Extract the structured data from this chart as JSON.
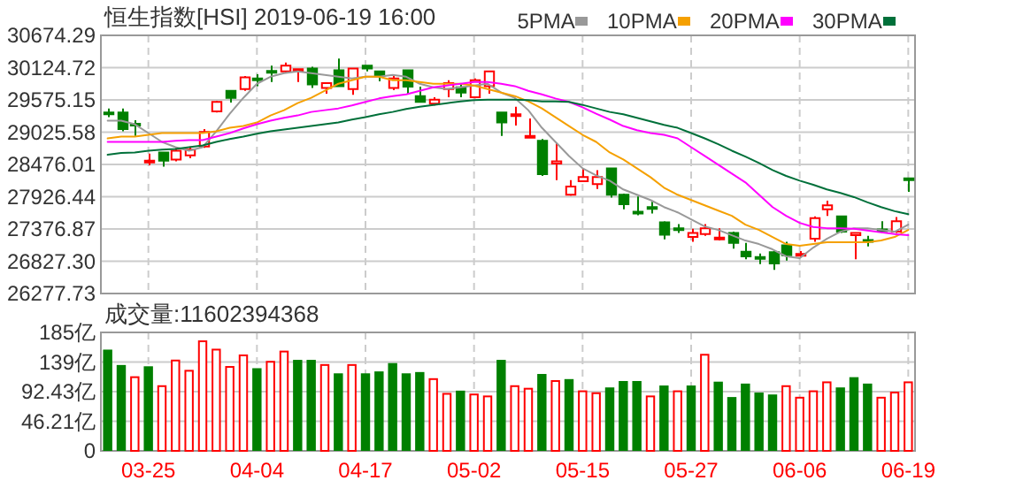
{
  "chart_data": [
    {
      "type": "candlestick",
      "title": "恒生指数[HSI] 2019-06-19 16:00",
      "categories": [
        null,
        null,
        null,
        null,
        null,
        null,
        null,
        null,
        null,
        null,
        null,
        null,
        null,
        null,
        null,
        null,
        null,
        null,
        null,
        null,
        null,
        null,
        null,
        null,
        null,
        null,
        null,
        null,
        null,
        null,
        null,
        null,
        null,
        null,
        null,
        null,
        null,
        null,
        null,
        null,
        null,
        null,
        null,
        null,
        null,
        null,
        null,
        null,
        null,
        null,
        null,
        null,
        null,
        null,
        null,
        null,
        null,
        null,
        null,
        null
      ],
      "ohlc": [
        [
          29360,
          29430,
          29280,
          29350
        ],
        [
          29360,
          29430,
          29040,
          29080
        ],
        [
          29170,
          29230,
          28960,
          29150
        ],
        [
          28520,
          28660,
          28460,
          28540
        ],
        [
          28680,
          28690,
          28440,
          28540
        ],
        [
          28560,
          28760,
          28530,
          28710
        ],
        [
          28630,
          28780,
          28580,
          28730
        ],
        [
          28780,
          29080,
          28760,
          29030
        ],
        [
          29380,
          29560,
          29360,
          29540
        ],
        [
          29730,
          29740,
          29530,
          29610
        ],
        [
          29760,
          29980,
          29730,
          29960
        ],
        [
          29940,
          30010,
          29810,
          29930
        ],
        [
          30070,
          30160,
          29880,
          30060
        ],
        [
          30060,
          30210,
          30040,
          30160
        ],
        [
          30080,
          30110,
          29880,
          30100
        ],
        [
          30110,
          30140,
          29780,
          29840
        ],
        [
          29780,
          29860,
          29680,
          29860
        ],
        [
          30080,
          30280,
          29810,
          29810
        ],
        [
          29760,
          30110,
          29660,
          30110
        ],
        [
          30160,
          30170,
          30060,
          30110
        ],
        [
          30060,
          30070,
          29890,
          29980
        ],
        [
          29780,
          30010,
          29740,
          29940
        ],
        [
          30080,
          30090,
          29680,
          29800
        ],
        [
          29640,
          29800,
          29540,
          29540
        ],
        [
          29510,
          29620,
          29480,
          29580
        ],
        [
          29760,
          29910,
          29620,
          29860
        ],
        [
          29790,
          29840,
          29620,
          29700
        ],
        [
          29620,
          29940,
          29600,
          29910
        ],
        [
          29810,
          30070,
          29680,
          30060
        ],
        [
          29360,
          29370,
          28960,
          29190
        ],
        [
          29320,
          29460,
          29140,
          29330
        ],
        [
          28950,
          29260,
          28940,
          28960
        ],
        [
          28880,
          28910,
          28280,
          28310
        ],
        [
          28490,
          28840,
          28210,
          28530
        ],
        [
          27960,
          28210,
          27940,
          28100
        ],
        [
          28190,
          28410,
          28190,
          28260
        ],
        [
          28140,
          28380,
          28060,
          28260
        ],
        [
          28410,
          28420,
          27910,
          27960
        ],
        [
          27960,
          27980,
          27710,
          27800
        ],
        [
          27670,
          27930,
          27610,
          27660
        ],
        [
          27750,
          27840,
          27640,
          27740
        ],
        [
          27490,
          27510,
          27200,
          27280
        ],
        [
          27390,
          27460,
          27310,
          27380
        ],
        [
          27240,
          27380,
          27160,
          27310
        ],
        [
          27290,
          27460,
          27260,
          27390
        ],
        [
          27220,
          27390,
          27180,
          27230
        ],
        [
          27310,
          27330,
          27040,
          27140
        ],
        [
          26990,
          27140,
          26860,
          26910
        ],
        [
          26900,
          26960,
          26780,
          26890
        ],
        [
          26980,
          27000,
          26680,
          26790
        ],
        [
          27100,
          27160,
          26840,
          26930
        ],
        [
          26940,
          27000,
          26890,
          26950
        ],
        [
          27210,
          27590,
          27160,
          27560
        ],
        [
          27710,
          27860,
          27600,
          27780
        ],
        [
          27590,
          27600,
          27310,
          27330
        ],
        [
          27270,
          27320,
          26860,
          27310
        ],
        [
          27190,
          27260,
          27080,
          27180
        ],
        [
          27370,
          27510,
          27310,
          27360
        ],
        [
          27330,
          27580,
          27310,
          27510
        ],
        [
          28240,
          28240,
          28010,
          28230
        ]
      ],
      "colors": [
        "#008000",
        "#008000",
        "#008000",
        "#ff0000",
        "#008000",
        "#ff0000",
        "#ff0000",
        "#ff0000",
        "#ff0000",
        "#008000",
        "#ff0000",
        "#008000",
        "#008000",
        "#ff0000",
        "#ff0000",
        "#008000",
        "#ff0000",
        "#008000",
        "#ff0000",
        "#008000",
        "#008000",
        "#ff0000",
        "#008000",
        "#008000",
        "#ff0000",
        "#ff0000",
        "#008000",
        "#ff0000",
        "#ff0000",
        "#008000",
        "#ff0000",
        "#ff0000",
        "#008000",
        "#ff0000",
        "#ff0000",
        "#ff0000",
        "#ff0000",
        "#008000",
        "#008000",
        "#008000",
        "#008000",
        "#008000",
        "#008000",
        "#ff0000",
        "#ff0000",
        "#ff0000",
        "#008000",
        "#008000",
        "#008000",
        "#008000",
        "#008000",
        "#ff0000",
        "#ff0000",
        "#ff0000",
        "#008000",
        "#ff0000",
        "#008000",
        "#008000",
        "#ff0000",
        "#008000"
      ],
      "series": [
        {
          "name": "5PMA",
          "type": "line",
          "color": "#999999",
          "values": [
            29220,
            29220,
            29160,
            29010,
            28860,
            28770,
            28710,
            28770,
            29040,
            29340,
            29610,
            29850,
            29970,
            30030,
            30060,
            30030,
            30000,
            29970,
            29940,
            29970,
            29970,
            30000,
            29970,
            29850,
            29790,
            29760,
            29790,
            29820,
            29850,
            29700,
            29610,
            29400,
            29100,
            28860,
            28620,
            28410,
            28290,
            28200,
            28050,
            27960,
            27870,
            27750,
            27660,
            27540,
            27420,
            27360,
            27270,
            27180,
            27120,
            27030,
            26910,
            26880,
            27060,
            27210,
            27330,
            27390,
            27390,
            27360,
            27330,
            27450
          ]
        },
        {
          "name": "10PMA",
          "type": "line",
          "color": "#f5a000",
          "values": [
            28920,
            28950,
            28950,
            28980,
            29010,
            29010,
            29010,
            29010,
            29040,
            29100,
            29130,
            29190,
            29310,
            29400,
            29520,
            29610,
            29730,
            29850,
            29910,
            29970,
            29970,
            29910,
            29910,
            29880,
            29850,
            29850,
            29850,
            29820,
            29760,
            29700,
            29640,
            29550,
            29430,
            29280,
            29130,
            28980,
            28860,
            28680,
            28560,
            28410,
            28260,
            28080,
            27960,
            27870,
            27780,
            27690,
            27600,
            27450,
            27360,
            27240,
            27120,
            27090,
            27120,
            27150,
            27150,
            27150,
            27150,
            27180,
            27240,
            27360
          ]
        },
        {
          "name": "20PMA",
          "type": "line",
          "color": "#ff00ff",
          "values": [
            28860,
            28860,
            28860,
            28860,
            28860,
            28880,
            28890,
            28890,
            28950,
            29010,
            29090,
            29160,
            29220,
            29270,
            29310,
            29370,
            29400,
            29430,
            29480,
            29540,
            29600,
            29640,
            29670,
            29730,
            29790,
            29820,
            29850,
            29880,
            29880,
            29850,
            29810,
            29730,
            29670,
            29600,
            29540,
            29450,
            29340,
            29240,
            29130,
            29060,
            29010,
            28980,
            28920,
            28770,
            28620,
            28470,
            28320,
            28170,
            27960,
            27750,
            27600,
            27480,
            27410,
            27390,
            27390,
            27380,
            27350,
            27320,
            27290,
            27270
          ]
        },
        {
          "name": "30PMA",
          "type": "line",
          "color": "#00703a",
          "values": [
            28640,
            28670,
            28680,
            28710,
            28730,
            28740,
            28770,
            28800,
            28860,
            28910,
            28950,
            29000,
            29040,
            29070,
            29100,
            29130,
            29160,
            29190,
            29240,
            29280,
            29330,
            29370,
            29420,
            29460,
            29490,
            29520,
            29550,
            29570,
            29580,
            29580,
            29580,
            29570,
            29550,
            29550,
            29540,
            29490,
            29430,
            29370,
            29330,
            29270,
            29210,
            29150,
            29100,
            29010,
            28920,
            28820,
            28710,
            28610,
            28500,
            28380,
            28280,
            28200,
            28130,
            28050,
            27990,
            27920,
            27830,
            27750,
            27680,
            27630
          ]
        }
      ],
      "ylim": [
        26277.73,
        30674.29
      ],
      "yticks": [
        26277.73,
        {
          "value": 26827.3,
          "label": "26827.30"
        },
        27376.87,
        27926.44,
        28476.01,
        29025.58,
        29575.15,
        30124.72,
        30674.29
      ],
      "grid": true,
      "legend": "top right",
      "tick_labels": "y"
    },
    {
      "type": "bar",
      "title": "成交量:11602394368",
      "categories": [
        null,
        null,
        null,
        "03-25",
        null,
        null,
        null,
        null,
        null,
        null,
        null,
        "04-04",
        null,
        null,
        null,
        null,
        null,
        null,
        null,
        "04-17",
        null,
        null,
        null,
        null,
        null,
        null,
        null,
        "05-02",
        null,
        null,
        null,
        null,
        null,
        null,
        null,
        "05-15",
        null,
        null,
        null,
        null,
        null,
        null,
        null,
        "05-27",
        null,
        null,
        null,
        null,
        null,
        null,
        null,
        "06-06",
        null,
        null,
        null,
        null,
        null,
        null,
        null,
        "06-19"
      ],
      "values": [
        158,
        134,
        115,
        132,
        101,
        141,
        125,
        171,
        158,
        131,
        149,
        129,
        139,
        155,
        142,
        142,
        134,
        121,
        134,
        121,
        124,
        137,
        121,
        123,
        112,
        89,
        94,
        88,
        85,
        142,
        101,
        97,
        120,
        109,
        112,
        93,
        90,
        99,
        109,
        109,
        85,
        102,
        93,
        102,
        150,
        108,
        84,
        105,
        91,
        88,
        101,
        83,
        93,
        107,
        99,
        115,
        105,
        83,
        91,
        107
      ],
      "colors": [
        "#008000",
        "#008000",
        "#ff0000",
        "#008000",
        "#ff0000",
        "#ff0000",
        "#ff0000",
        "#ff0000",
        "#ff0000",
        "#ff0000",
        "#ff0000",
        "#008000",
        "#ff0000",
        "#ff0000",
        "#008000",
        "#008000",
        "#ff0000",
        "#008000",
        "#ff0000",
        "#008000",
        "#008000",
        "#008000",
        "#008000",
        "#008000",
        "#ff0000",
        "#ff0000",
        "#008000",
        "#ff0000",
        "#ff0000",
        "#008000",
        "#ff0000",
        "#ff0000",
        "#008000",
        "#ff0000",
        "#008000",
        "#ff0000",
        "#ff0000",
        "#008000",
        "#008000",
        "#008000",
        "#ff0000",
        "#008000",
        "#ff0000",
        "#008000",
        "#ff0000",
        "#008000",
        "#008000",
        "#008000",
        "#008000",
        "#008000",
        "#ff0000",
        "#ff0000",
        "#ff0000",
        "#ff0000",
        "#008000",
        "#008000",
        "#008000",
        "#ff0000",
        "#ff0000",
        "#ff0000"
      ],
      "ylim": [
        0,
        184.85
      ],
      "yticks": [
        0,
        {
          "value": 46.21,
          "label": "46.21亿"
        },
        {
          "value": 92.43,
          "label": "92.43亿"
        },
        {
          "value": 138.64,
          "label": "139亿"
        },
        {
          "value": 184.85,
          "label": "185亿"
        }
      ],
      "grid": true
    }
  ]
}
